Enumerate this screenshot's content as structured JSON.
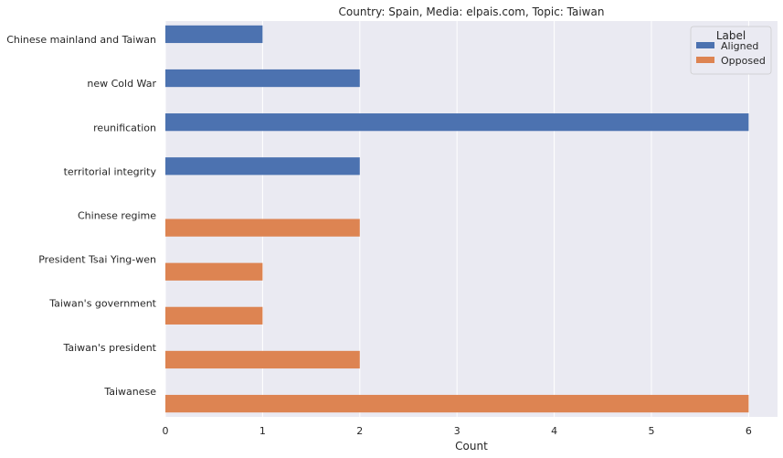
{
  "chart_data": {
    "type": "bar",
    "orientation": "horizontal",
    "title": "Country: Spain, Media: elpais.com, Topic: Taiwan",
    "xlabel": "Count",
    "ylabel": "",
    "xlim": [
      0,
      6.3
    ],
    "x_ticks": [
      0,
      1,
      2,
      3,
      4,
      5,
      6
    ],
    "grid": true,
    "legend_title": "Label",
    "legend_position": "top-right",
    "categories": [
      "Chinese mainland and Taiwan",
      "new Cold War",
      "reunification",
      "territorial integrity",
      "Chinese regime",
      "President Tsai Ying-wen",
      "Taiwan's government",
      "Taiwan's president",
      "Taiwanese"
    ],
    "series": [
      {
        "name": "Aligned",
        "color": "#4c72b0",
        "values": [
          1,
          2,
          6,
          2,
          null,
          null,
          null,
          null,
          null
        ]
      },
      {
        "name": "Opposed",
        "color": "#dd8452",
        "values": [
          null,
          null,
          null,
          null,
          2,
          1,
          1,
          2,
          6
        ]
      }
    ]
  }
}
